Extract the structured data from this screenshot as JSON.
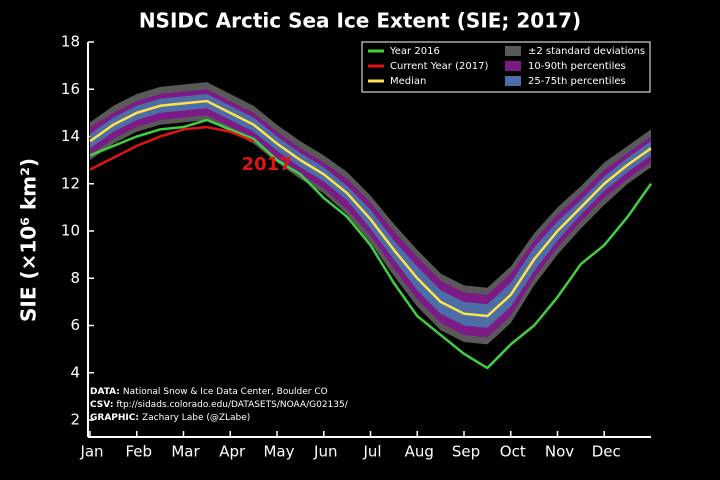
{
  "chart_data": {
    "type": "line",
    "title": "NSIDC Arctic Sea Ice Extent (SIE; 2017)",
    "y_label": "SIE (×10⁶ km²)",
    "categories": [
      "Jan",
      null,
      "Feb",
      null,
      "Mar",
      null,
      "Apr",
      null,
      "May",
      null,
      "Jun",
      null,
      "Jul",
      null,
      "Aug",
      null,
      "Sep",
      null,
      "Oct",
      null,
      "Nov",
      null,
      "Dec",
      null,
      null
    ],
    "ylim": [
      2,
      18
    ],
    "yticks": [
      2,
      4,
      6,
      8,
      10,
      12,
      14,
      16,
      18
    ],
    "legend": "upper right",
    "bands": [
      {
        "name": "±2 standard deviations",
        "color": "#595959",
        "upper": [
          14.6,
          15.3,
          15.8,
          16.1,
          16.2,
          16.3,
          15.8,
          15.3,
          14.5,
          13.8,
          13.2,
          12.5,
          11.5,
          10.3,
          9.2,
          8.2,
          7.7,
          7.6,
          8.5,
          9.9,
          11.0,
          11.9,
          12.9,
          13.6,
          14.3
        ],
        "lower": [
          13.0,
          13.7,
          14.2,
          14.5,
          14.6,
          14.7,
          14.2,
          13.7,
          12.9,
          12.2,
          11.6,
          10.7,
          9.5,
          8.1,
          6.8,
          5.8,
          5.3,
          5.2,
          6.1,
          7.7,
          9.0,
          10.1,
          11.1,
          12.0,
          12.7
        ]
      },
      {
        "name": "10-90th percentiles",
        "color": "#7d1b86",
        "upper": [
          14.4,
          15.0,
          15.5,
          15.8,
          15.9,
          16.0,
          15.5,
          15.0,
          14.2,
          13.5,
          12.9,
          12.2,
          11.2,
          10.0,
          8.9,
          7.9,
          7.4,
          7.3,
          8.2,
          9.6,
          10.7,
          11.6,
          12.6,
          13.3,
          14.0
        ],
        "lower": [
          13.2,
          13.9,
          14.4,
          14.7,
          14.8,
          14.9,
          14.4,
          13.9,
          13.1,
          12.4,
          11.8,
          10.9,
          9.8,
          8.4,
          7.1,
          6.1,
          5.6,
          5.5,
          6.4,
          8.0,
          9.3,
          10.4,
          11.4,
          12.2,
          12.9
        ]
      },
      {
        "name": "25-75th percentiles",
        "color": "#4d6da6",
        "upper": [
          14.1,
          14.8,
          15.3,
          15.6,
          15.7,
          15.8,
          15.3,
          14.8,
          14.0,
          13.3,
          12.7,
          11.9,
          10.9,
          9.6,
          8.5,
          7.5,
          7.0,
          6.9,
          7.8,
          9.3,
          10.4,
          11.3,
          12.3,
          13.1,
          13.8
        ],
        "lower": [
          13.5,
          14.2,
          14.7,
          15.0,
          15.1,
          15.2,
          14.7,
          14.2,
          13.4,
          12.7,
          12.1,
          11.3,
          10.1,
          8.8,
          7.5,
          6.5,
          6.0,
          5.9,
          6.8,
          8.3,
          9.6,
          10.7,
          11.7,
          12.5,
          13.2
        ]
      }
    ],
    "series": [
      {
        "name": "Year 2016",
        "color": "#3fd03f",
        "values": [
          13.2,
          13.6,
          14.0,
          14.3,
          14.4,
          14.7,
          14.3,
          13.9,
          13.0,
          12.4,
          11.4,
          10.6,
          9.4,
          7.8,
          6.4,
          5.6,
          4.8,
          4.2,
          5.2,
          6.0,
          7.2,
          8.6,
          9.4,
          10.6,
          12.0
        ]
      },
      {
        "name": "Current Year (2017)",
        "color": "#e01414",
        "values": [
          12.6,
          13.1,
          13.6,
          14.0,
          14.3,
          14.4,
          14.2,
          13.8,
          null,
          null,
          null,
          null,
          null,
          null,
          null,
          null,
          null,
          null,
          null,
          null,
          null,
          null,
          null,
          null,
          null
        ]
      },
      {
        "name": "Median",
        "color": "#ffe34a",
        "values": [
          13.8,
          14.5,
          15.0,
          15.3,
          15.4,
          15.5,
          15.0,
          14.5,
          13.7,
          13.0,
          12.4,
          11.6,
          10.5,
          9.2,
          8.0,
          7.0,
          6.5,
          6.4,
          7.3,
          8.8,
          10.0,
          11.0,
          12.0,
          12.8,
          13.5
        ]
      }
    ],
    "annotation": "2017",
    "sources": [
      {
        "label": "DATA:",
        "text": "National Snow & Ice Data Center, Boulder CO"
      },
      {
        "label": "CSV:",
        "text": "ftp://sidads.colorado.edu/DATASETS/NOAA/G02135/"
      },
      {
        "label": "GRAPHIC:",
        "text": "Zachary Labe (@ZLabe)"
      }
    ]
  }
}
